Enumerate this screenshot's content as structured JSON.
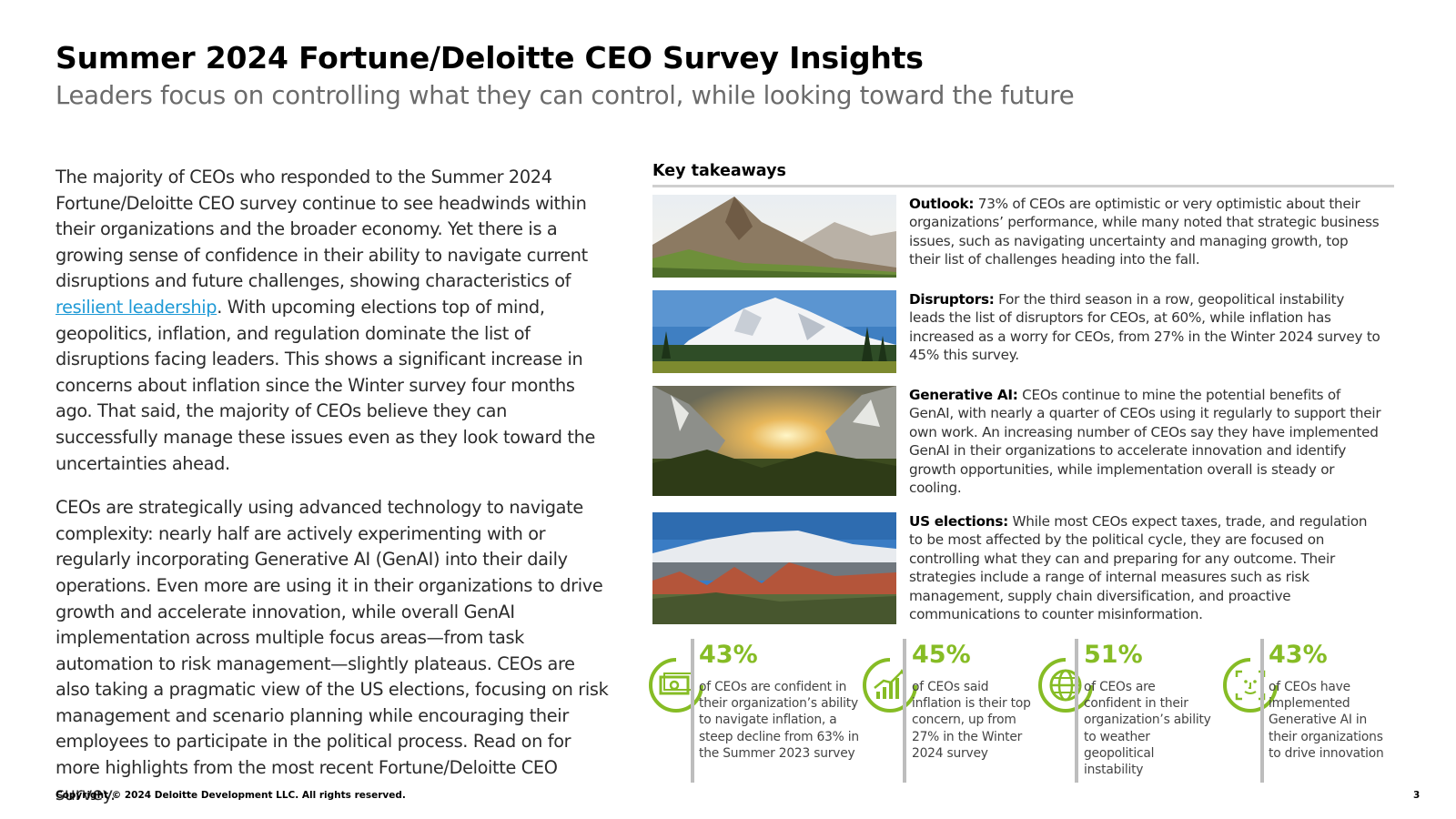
{
  "header": {
    "title": "Summer 2024 Fortune/Deloitte CEO Survey Insights",
    "subtitle": "Leaders focus on controlling what they can control, while looking toward the future"
  },
  "intro": {
    "p1_before_link": "The majority of CEOs who responded to the Summer 2024 Fortune/Deloitte CEO survey continue to see headwinds within their organizations and the broader economy. Yet there is a growing sense of confidence in their ability to navigate current disruptions and future challenges, showing characteristics of ",
    "p1_link": "resilient leadership",
    "p1_after_link": ". With upcoming elections top of mind, geopolitics, inflation, and regulation dominate the list of disruptions facing leaders. This shows a significant increase in concerns about inflation since the Winter survey four months ago. That said, the majority of CEOs believe they can successfully manage these issues even as they look toward the uncertainties ahead.",
    "p2": "CEOs are strategically using advanced technology to navigate complexity: nearly half are actively experimenting with or regularly incorporating Generative AI (GenAI) into their daily operations. Even more are using it in their organizations to drive growth and accelerate innovation, while overall GenAI implementation across multiple focus areas—from task automation to risk management—slightly plateaus. CEOs are also taking a pragmatic view of the US elections, focusing on risk management and scenario planning while encouraging their employees to participate in the political process. Read on for more highlights from the most recent Fortune/Deloitte CEO survey."
  },
  "takeaways": {
    "heading": "Key takeaways",
    "items": [
      {
        "label": "Outlook:",
        "text": " 73% of CEOs are optimistic or very optimistic about their organizations’ performance, while many noted that strategic business issues, such as navigating uncertainty and managing growth, top their list of challenges heading into the fall."
      },
      {
        "label": "Disruptors:",
        "text": " For the third season in a row, geopolitical instability leads the list of disruptors for CEOs, at 60%, while inflation has increased as a worry for CEOs, from 27% in the Winter 2024 survey to 45% this survey."
      },
      {
        "label": "Generative AI:",
        "text": " CEOs continue to mine the potential benefits of GenAI, with nearly a quarter of CEOs using it regularly to support their own work. An increasing number of CEOs say they have implemented GenAI in their organizations to accelerate innovation and identify growth opportunities, while implementation overall is steady or cooling."
      },
      {
        "label": "US elections:",
        "text": " While most CEOs expect taxes, trade, and regulation to be most affected by the political cycle, they are focused on controlling what they can and preparing for any outcome. Their strategies include a range of internal measures such as risk management, supply chain diversification, and proactive communications to counter misinformation."
      }
    ]
  },
  "stats": [
    {
      "icon": "money-icon",
      "value": "43%",
      "desc": "of CEOs are confident in their organization’s ability to navigate inflation, a steep decline from 63% in the Summer 2023 survey"
    },
    {
      "icon": "growth-chart-icon",
      "value": "45%",
      "desc": "of CEOs said inflation is their top concern, up from 27% in the Winter 2024 survey"
    },
    {
      "icon": "globe-icon",
      "value": "51%",
      "desc": "of CEOs are confident in their organization’s ability to weather geopolitical instability"
    },
    {
      "icon": "face-scan-icon",
      "value": "43%",
      "desc": "of CEOs have implemented Generative AI in their organizations to drive innovation"
    }
  ],
  "colors": {
    "accent": "#86bc25",
    "link": "#1f9ad6"
  },
  "footer": {
    "copyright": "Copyright © 2024 Deloitte Development LLC. All rights reserved.",
    "page": "3"
  }
}
